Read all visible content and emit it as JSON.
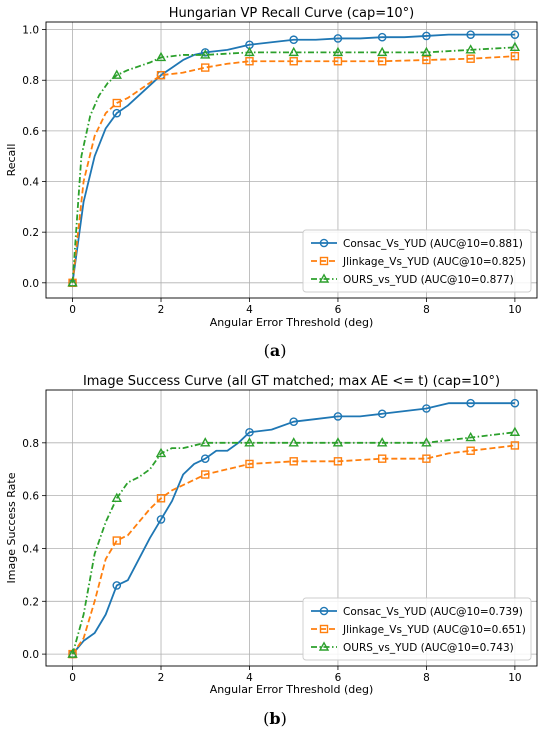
{
  "chart_data": [
    {
      "type": "line",
      "title": "Hungarian VP Recall Curve (cap=10°)",
      "xlabel": "Angular Error Threshold (deg)",
      "ylabel": "Recall",
      "xlim": [
        -0.6,
        10.5
      ],
      "ylim": [
        -0.06,
        1.03
      ],
      "xticks": [
        0,
        2,
        4,
        6,
        8,
        10
      ],
      "yticks": [
        0.0,
        0.2,
        0.4,
        0.6,
        0.8,
        1.0
      ],
      "ytick_labels": [
        "0.0",
        "0.2",
        "0.4",
        "0.6",
        "0.8",
        "1.0"
      ],
      "grid": true,
      "legend_position": "lower-right",
      "caption": "a",
      "series": [
        {
          "name": "Consac_Vs_YUD (AUC@10=0.881)",
          "color": "#1f77b4",
          "linestyle": "solid",
          "marker": "circle",
          "x": [
            0,
            0.25,
            0.5,
            0.75,
            1,
            1.25,
            1.5,
            1.75,
            2,
            2.25,
            2.5,
            2.75,
            3,
            3.5,
            4,
            4.5,
            5,
            5.5,
            6,
            6.5,
            7,
            7.5,
            8,
            8.5,
            9,
            9.5,
            10
          ],
          "y": [
            0.0,
            0.32,
            0.5,
            0.61,
            0.67,
            0.7,
            0.74,
            0.78,
            0.82,
            0.85,
            0.88,
            0.9,
            0.91,
            0.92,
            0.94,
            0.95,
            0.96,
            0.96,
            0.965,
            0.965,
            0.97,
            0.97,
            0.975,
            0.98,
            0.98,
            0.98,
            0.98
          ]
        },
        {
          "name": "Jlinkage_Vs_YUD (AUC@10=0.825)",
          "color": "#ff7f0e",
          "linestyle": "dashed",
          "marker": "square",
          "x": [
            0,
            0.25,
            0.5,
            0.75,
            1,
            1.25,
            1.5,
            1.75,
            2,
            2.5,
            3,
            3.5,
            4,
            5,
            6,
            7,
            8,
            9,
            9.5,
            10
          ],
          "y": [
            0.0,
            0.4,
            0.58,
            0.67,
            0.71,
            0.73,
            0.76,
            0.79,
            0.82,
            0.83,
            0.85,
            0.865,
            0.875,
            0.875,
            0.875,
            0.875,
            0.88,
            0.885,
            0.89,
            0.895
          ]
        },
        {
          "name": "OURS_vs_YUD (AUC@10=0.877)",
          "color": "#2ca02c",
          "linestyle": "dashdot",
          "marker": "triangle",
          "x": [
            0,
            0.2,
            0.4,
            0.6,
            0.8,
            1,
            1.25,
            1.5,
            1.75,
            2,
            2.5,
            3,
            3.5,
            4,
            5,
            6,
            7,
            8,
            8.5,
            9,
            9.5,
            10
          ],
          "y": [
            0.0,
            0.5,
            0.66,
            0.74,
            0.79,
            0.82,
            0.84,
            0.855,
            0.87,
            0.89,
            0.9,
            0.9,
            0.905,
            0.91,
            0.91,
            0.91,
            0.91,
            0.91,
            0.915,
            0.92,
            0.925,
            0.93
          ]
        }
      ]
    },
    {
      "type": "line",
      "title": "Image Success Curve (all GT matched; max AE <= t) (cap=10°)",
      "xlabel": "Angular Error Threshold (deg)",
      "ylabel": "Image Success Rate",
      "xlim": [
        -0.6,
        10.5
      ],
      "ylim": [
        -0.045,
        1.0
      ],
      "xticks": [
        0,
        2,
        4,
        6,
        8,
        10
      ],
      "yticks": [
        0.0,
        0.2,
        0.4,
        0.6,
        0.8
      ],
      "ytick_labels": [
        "0.0",
        "0.2",
        "0.4",
        "0.6",
        "0.8"
      ],
      "grid": true,
      "legend_position": "lower-right",
      "caption": "b",
      "series": [
        {
          "name": "Consac_Vs_YUD (AUC@10=0.739)",
          "color": "#1f77b4",
          "linestyle": "solid",
          "marker": "circle",
          "x": [
            0,
            0.25,
            0.5,
            0.75,
            1,
            1.25,
            1.5,
            1.75,
            2,
            2.25,
            2.5,
            2.75,
            3,
            3.25,
            3.5,
            3.75,
            4,
            4.5,
            5,
            5.5,
            6,
            6.5,
            7,
            7.5,
            8,
            8.5,
            9,
            9.5,
            10
          ],
          "y": [
            0.0,
            0.05,
            0.08,
            0.15,
            0.26,
            0.28,
            0.36,
            0.44,
            0.51,
            0.58,
            0.68,
            0.72,
            0.74,
            0.77,
            0.77,
            0.8,
            0.84,
            0.85,
            0.88,
            0.89,
            0.9,
            0.9,
            0.91,
            0.92,
            0.93,
            0.95,
            0.95,
            0.95,
            0.95
          ]
        },
        {
          "name": "Jlinkage_Vs_YUD (AUC@10=0.651)",
          "color": "#ff7f0e",
          "linestyle": "dashed",
          "marker": "square",
          "x": [
            0,
            0.25,
            0.5,
            0.75,
            1,
            1.25,
            1.5,
            1.75,
            2,
            2.25,
            2.5,
            2.75,
            3,
            3.5,
            4,
            5,
            6,
            7,
            8,
            8.5,
            9,
            9.5,
            10
          ],
          "y": [
            0.0,
            0.06,
            0.2,
            0.36,
            0.43,
            0.45,
            0.5,
            0.55,
            0.59,
            0.62,
            0.64,
            0.66,
            0.68,
            0.7,
            0.72,
            0.73,
            0.73,
            0.74,
            0.74,
            0.76,
            0.77,
            0.78,
            0.79
          ]
        },
        {
          "name": "OURS_vs_YUD (AUC@10=0.743)",
          "color": "#2ca02c",
          "linestyle": "dashdot",
          "marker": "triangle",
          "x": [
            0,
            0.25,
            0.5,
            0.75,
            1,
            1.25,
            1.5,
            1.75,
            2,
            2.25,
            2.5,
            3,
            4,
            5,
            6,
            7,
            8,
            8.5,
            9,
            9.5,
            10
          ],
          "y": [
            0.0,
            0.15,
            0.38,
            0.5,
            0.59,
            0.65,
            0.67,
            0.7,
            0.76,
            0.78,
            0.78,
            0.8,
            0.8,
            0.8,
            0.8,
            0.8,
            0.8,
            0.81,
            0.82,
            0.83,
            0.84
          ]
        }
      ]
    }
  ]
}
